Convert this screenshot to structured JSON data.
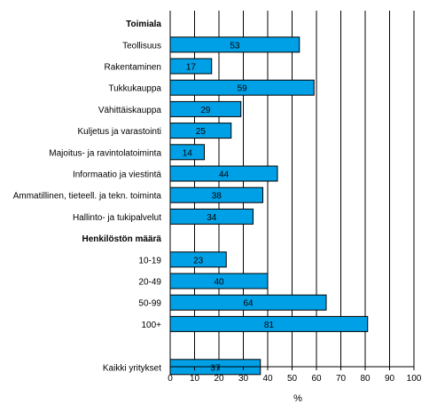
{
  "chart_data": {
    "type": "bar",
    "orientation": "horizontal",
    "xlabel": "%",
    "xlim": [
      0,
      100
    ],
    "xticks": [
      0,
      10,
      20,
      30,
      40,
      50,
      60,
      70,
      80,
      90,
      100
    ],
    "grid": true,
    "bar_color": "#00a0e6",
    "rows": [
      {
        "label": "Toimiala",
        "kind": "header"
      },
      {
        "label": "Teollisuus",
        "value": 53
      },
      {
        "label": "Rakentaminen",
        "value": 17
      },
      {
        "label": "Tukkukauppa",
        "value": 59
      },
      {
        "label": "Vähittäiskauppa",
        "value": 29
      },
      {
        "label": "Kuljetus ja varastointi",
        "value": 25
      },
      {
        "label": "Majoitus- ja ravintolatoiminta",
        "value": 14
      },
      {
        "label": "Informaatio ja viestintä",
        "value": 44
      },
      {
        "label": "Ammatillinen, tieteell. ja tekn. toiminta",
        "value": 38
      },
      {
        "label": "Hallinto- ja tukipalvelut",
        "value": 34
      },
      {
        "label": "Henkilöstön määrä",
        "kind": "header"
      },
      {
        "label": "10-19",
        "value": 23
      },
      {
        "label": "20-49",
        "value": 40
      },
      {
        "label": "50-99",
        "value": 64
      },
      {
        "label": "100+",
        "value": 81
      },
      {
        "label": "",
        "kind": "spacer"
      },
      {
        "label": "Kaikki yritykset",
        "value": 37
      }
    ]
  }
}
